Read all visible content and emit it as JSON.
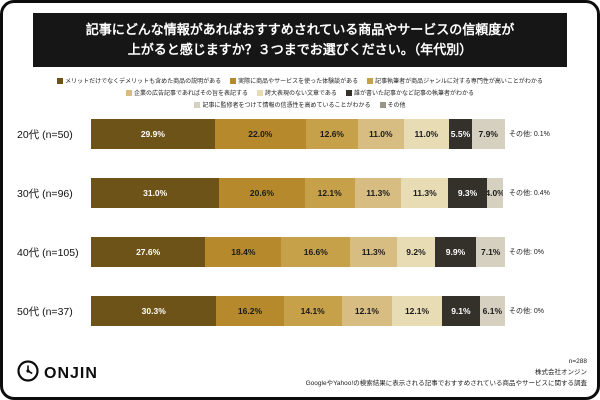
{
  "title": {
    "line1": "記事にどんな情報があればおすすめされている商品やサービスの信頼度が",
    "line2": "上がると感じますか？３つまでお選びください。（年代別）"
  },
  "chart_data": {
    "type": "bar",
    "subtype": "horizontal-stacked",
    "value_format": "percent",
    "xlim": [
      0,
      100
    ],
    "legend_position": "top",
    "categories": [
      "20代 (n=50)",
      "30代 (n=96)",
      "40代 (n=105)",
      "50代 (n=37)"
    ],
    "series": [
      {
        "name": "メリットだけでなくデメリットも含めた商品の説明がある",
        "color": "#6e5318",
        "text_color": "#ffffff",
        "values": [
          29.9,
          31.0,
          27.6,
          30.3
        ]
      },
      {
        "name": "実際に商品やサービスを使った体験談がある",
        "color": "#b5892c",
        "text_color": "#1a1a1a",
        "values": [
          22.0,
          20.6,
          18.4,
          16.2
        ]
      },
      {
        "name": "記事執筆者が商品ジャンルに対する専門性が高いことがわかる",
        "color": "#c7a04a",
        "text_color": "#1a1a1a",
        "values": [
          12.6,
          12.1,
          16.6,
          14.1
        ]
      },
      {
        "name": "企業の広告記事であればその旨を表記する",
        "color": "#d8bd82",
        "text_color": "#1a1a1a",
        "values": [
          11.0,
          11.3,
          11.3,
          12.1
        ]
      },
      {
        "name": "誇大表現のない文章である",
        "color": "#e8dcb5",
        "text_color": "#1a1a1a",
        "values": [
          11.0,
          11.3,
          9.2,
          12.1
        ]
      },
      {
        "name": "誰が書いた記事かなど記事の執筆者がわかる",
        "color": "#33312a",
        "text_color": "#ffffff",
        "values": [
          5.5,
          9.3,
          9.9,
          9.1
        ]
      },
      {
        "name": "記事に監修者をつけて情報の信憑性を高めていることがわかる",
        "color": "#d6d0c0",
        "text_color": "#1a1a1a",
        "values": [
          7.9,
          4.0,
          7.1,
          6.1
        ]
      }
    ],
    "other": {
      "label": "その他",
      "color": "#9a9587",
      "values": [
        "0.1%",
        "0.4%",
        "0%",
        "0%"
      ]
    }
  },
  "footer": {
    "logo_text": "ONJIN",
    "lines": [
      "n=288",
      "株式会社オンジン",
      "GoogleやYahoo!の検索結果に表示される記事でおすすめされている商品やサービスに関する調査"
    ]
  }
}
